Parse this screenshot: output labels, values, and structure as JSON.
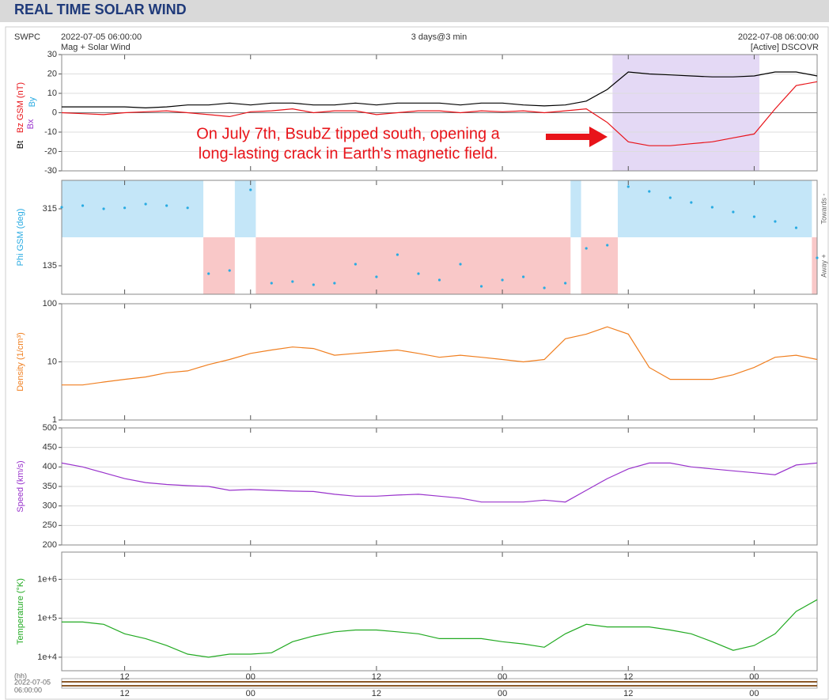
{
  "header": {
    "title": "REAL TIME SOLAR WIND",
    "source": "SWPC",
    "start": "2022-07-05 06:00:00",
    "span": "3 days@3 min",
    "end": "2022-07-08 06:00:00",
    "subtitle": "Mag + Solar Wind",
    "status": "[Active] DSCOVR"
  },
  "x_axis": {
    "unit_label": "(hh)",
    "start_date": "2022-07-05",
    "start_time": "06:00:00"
  },
  "chart_data": [
    {
      "type": "line",
      "xlim": [
        0,
        72
      ],
      "xticks": [
        {
          "value": 6,
          "label": "12"
        },
        {
          "value": 18,
          "label": "00"
        },
        {
          "value": 30,
          "label": "12"
        },
        {
          "value": 42,
          "label": "00"
        },
        {
          "value": 54,
          "label": "12"
        },
        {
          "value": 66,
          "label": "00"
        }
      ],
      "x": [
        0,
        2,
        4,
        6,
        8,
        10,
        12,
        14,
        16,
        18,
        20,
        22,
        24,
        26,
        28,
        30,
        32,
        34,
        36,
        38,
        40,
        42,
        44,
        46,
        48,
        50,
        52,
        54,
        56,
        58,
        60,
        62,
        64,
        66,
        68,
        70,
        72
      ],
      "ylim": [
        -30,
        30
      ],
      "yticks": [
        -30,
        -20,
        -10,
        0,
        10,
        20,
        30
      ],
      "grid": true,
      "series": [
        {
          "name": "Bt",
          "color": "#000000",
          "values": [
            3,
            3,
            3,
            3,
            2.5,
            3,
            4,
            4,
            5,
            4,
            5,
            5,
            4,
            4,
            5,
            4,
            5,
            5,
            5,
            4,
            5,
            5,
            4,
            3.5,
            4,
            6,
            12,
            21,
            20,
            19.5,
            19,
            18.5,
            18.5,
            19,
            21,
            21,
            19
          ]
        },
        {
          "name": "Bz GSM (nT)",
          "color": "#e8141a",
          "values": [
            0,
            -0.5,
            -1,
            0,
            0.5,
            1,
            0,
            -1,
            -2,
            0.5,
            1,
            2,
            0,
            1,
            1,
            -1,
            0,
            1,
            1,
            0,
            1,
            0.5,
            1,
            0,
            1,
            2,
            -5,
            -15,
            -17,
            -17,
            -16,
            -15,
            -13,
            -11,
            2,
            14,
            16
          ]
        }
      ],
      "legend_extra": [
        {
          "name": "Bx",
          "color": "#9933cc"
        },
        {
          "name": "By",
          "color": "#29abe2"
        }
      ],
      "bands": [
        {
          "x0": 52.5,
          "x1": 66.5,
          "color": "#e4d9f5"
        }
      ],
      "annotation": [
        "On July 7th, BsubZ tipped south, opening a",
        "long-lasting crack in Earth's magnetic field."
      ]
    },
    {
      "type": "scatter",
      "xlim": [
        0,
        72
      ],
      "xticks": [
        {
          "value": 6,
          "label": "12"
        },
        {
          "value": 18,
          "label": "00"
        },
        {
          "value": 30,
          "label": "12"
        },
        {
          "value": 42,
          "label": "00"
        },
        {
          "value": 54,
          "label": "12"
        },
        {
          "value": 66,
          "label": "00"
        }
      ],
      "x": [
        0,
        2,
        4,
        6,
        8,
        10,
        12,
        14,
        16,
        18,
        20,
        22,
        24,
        26,
        28,
        30,
        32,
        34,
        36,
        38,
        40,
        42,
        44,
        46,
        48,
        50,
        52,
        54,
        56,
        58,
        60,
        62,
        64,
        66,
        68,
        70,
        72
      ],
      "ylim": [
        45,
        405
      ],
      "yticks": [
        135,
        315
      ],
      "ylabel": "Phi GSM (deg)",
      "color": "#29abe2",
      "values": [
        320,
        325,
        315,
        318,
        330,
        325,
        318,
        110,
        120,
        375,
        80,
        85,
        75,
        80,
        140,
        100,
        170,
        110,
        90,
        140,
        70,
        90,
        100,
        65,
        80,
        190,
        200,
        385,
        370,
        350,
        335,
        320,
        305,
        290,
        275,
        255,
        160
      ],
      "side_labels": [
        "Towards -",
        "Away +"
      ],
      "bands": [
        {
          "x0": 0,
          "x1": 13.5,
          "side": "towards",
          "color": "#c4e6f8"
        },
        {
          "x0": 13.5,
          "x1": 16.5,
          "side": "away",
          "color": "#f9c8c8"
        },
        {
          "x0": 16.5,
          "x1": 18.5,
          "side": "towards",
          "color": "#c4e6f8"
        },
        {
          "x0": 18.5,
          "x1": 48.5,
          "side": "away",
          "color": "#f9c8c8"
        },
        {
          "x0": 48.5,
          "x1": 49.5,
          "side": "towards",
          "color": "#c4e6f8"
        },
        {
          "x0": 49.5,
          "x1": 53,
          "side": "away",
          "color": "#f9c8c8"
        },
        {
          "x0": 53,
          "x1": 71.5,
          "side": "towards",
          "color": "#c4e6f8"
        },
        {
          "x0": 71.5,
          "x1": 72,
          "side": "away",
          "color": "#f9c8c8"
        }
      ]
    },
    {
      "type": "line",
      "log_scale": true,
      "xlim": [
        0,
        72
      ],
      "xticks": [
        {
          "value": 6,
          "label": "12"
        },
        {
          "value": 18,
          "label": "00"
        },
        {
          "value": 30,
          "label": "12"
        },
        {
          "value": 42,
          "label": "00"
        },
        {
          "value": 54,
          "label": "12"
        },
        {
          "value": 66,
          "label": "00"
        }
      ],
      "x": [
        0,
        2,
        4,
        6,
        8,
        10,
        12,
        14,
        16,
        18,
        20,
        22,
        24,
        26,
        28,
        30,
        32,
        34,
        36,
        38,
        40,
        42,
        44,
        46,
        48,
        50,
        52,
        54,
        56,
        58,
        60,
        62,
        64,
        66,
        68,
        70,
        72
      ],
      "ylim": [
        1,
        100
      ],
      "yticks": [
        1,
        10,
        100
      ],
      "grid": true,
      "ylabel": "Density (1/cm³)",
      "series": [
        {
          "name": "Density",
          "color": "#f07f20",
          "values": [
            4,
            4,
            4.5,
            5,
            5.5,
            6.5,
            7,
            9,
            11,
            14,
            16,
            18,
            17,
            13,
            14,
            15,
            16,
            14,
            12,
            13,
            12,
            11,
            10,
            11,
            25,
            30,
            40,
            30,
            8,
            5,
            5,
            5,
            6,
            8,
            12,
            13,
            11
          ]
        }
      ]
    },
    {
      "type": "line",
      "xlim": [
        0,
        72
      ],
      "xticks": [
        {
          "value": 6,
          "label": "12"
        },
        {
          "value": 18,
          "label": "00"
        },
        {
          "value": 30,
          "label": "12"
        },
        {
          "value": 42,
          "label": "00"
        },
        {
          "value": 54,
          "label": "12"
        },
        {
          "value": 66,
          "label": "00"
        }
      ],
      "x": [
        0,
        2,
        4,
        6,
        8,
        10,
        12,
        14,
        16,
        18,
        20,
        22,
        24,
        26,
        28,
        30,
        32,
        34,
        36,
        38,
        40,
        42,
        44,
        46,
        48,
        50,
        52,
        54,
        56,
        58,
        60,
        62,
        64,
        66,
        68,
        70,
        72
      ],
      "ylim": [
        200,
        500
      ],
      "yticks": [
        200,
        250,
        300,
        350,
        400,
        450,
        500
      ],
      "grid": true,
      "ylabel": "Speed (km/s)",
      "series": [
        {
          "name": "Speed",
          "color": "#9933cc",
          "values": [
            410,
            400,
            385,
            370,
            360,
            355,
            352,
            350,
            340,
            342,
            340,
            338,
            337,
            330,
            325,
            325,
            328,
            330,
            325,
            320,
            310,
            310,
            310,
            315,
            310,
            340,
            370,
            395,
            410,
            410,
            400,
            395,
            390,
            385,
            380,
            405,
            410
          ]
        }
      ]
    },
    {
      "type": "line",
      "log_scale": true,
      "xlim": [
        0,
        72
      ],
      "xticks": [
        {
          "value": 6,
          "label": "12"
        },
        {
          "value": 18,
          "label": "00"
        },
        {
          "value": 30,
          "label": "12"
        },
        {
          "value": 42,
          "label": "00"
        },
        {
          "value": 54,
          "label": "12"
        },
        {
          "value": 66,
          "label": "00"
        }
      ],
      "x": [
        0,
        2,
        4,
        6,
        8,
        10,
        12,
        14,
        16,
        18,
        20,
        22,
        24,
        26,
        28,
        30,
        32,
        34,
        36,
        38,
        40,
        42,
        44,
        46,
        48,
        50,
        52,
        54,
        56,
        58,
        60,
        62,
        64,
        66,
        68,
        70,
        72
      ],
      "ylim": [
        4500,
        5000000
      ],
      "yticks": [
        {
          "value": 10000,
          "label": "1e+4"
        },
        {
          "value": 100000,
          "label": "1e+5"
        },
        {
          "value": 1000000,
          "label": "1e+6"
        }
      ],
      "grid": true,
      "ylabel": "Temperature (°K)",
      "series": [
        {
          "name": "Temperature",
          "color": "#22aa22",
          "values": [
            80000,
            80000,
            70000,
            40000,
            30000,
            20000,
            12000,
            10000,
            12000,
            12000,
            13000,
            25000,
            35000,
            45000,
            50000,
            50000,
            45000,
            40000,
            30000,
            30000,
            30000,
            25000,
            22000,
            18000,
            40000,
            70000,
            60000,
            60000,
            60000,
            50000,
            40000,
            25000,
            15000,
            20000,
            40000,
            150000,
            300000
          ]
        }
      ]
    }
  ]
}
